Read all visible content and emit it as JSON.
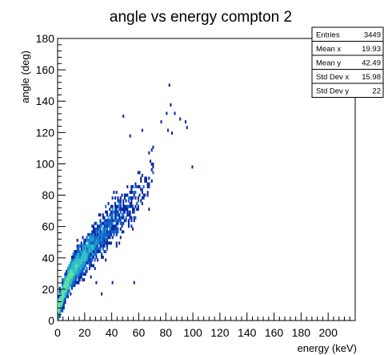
{
  "chart_data": {
    "type": "heatmap",
    "title": "angle vs energy compton 2",
    "xlabel": "energy (keV)",
    "ylabel": "angle (deg)",
    "xlim": [
      0,
      220
    ],
    "ylim": [
      0,
      180
    ],
    "x_ticks": [
      0,
      20,
      40,
      60,
      80,
      100,
      120,
      140,
      160,
      180,
      200
    ],
    "y_ticks": [
      0,
      20,
      40,
      60,
      80,
      100,
      120,
      140,
      160,
      180
    ],
    "grid": false,
    "stats_box": {
      "placement": "top-right",
      "rows": [
        {
          "label": "Entries",
          "value": "3449"
        },
        {
          "label": "Mean x",
          "value": "19.93"
        },
        {
          "label": "Mean y",
          "value": "42.49"
        },
        {
          "label": "Std Dev x",
          "value": "15.98"
        },
        {
          "label": "Std Dev y",
          "value": "22"
        }
      ]
    },
    "density_model": {
      "entries": 3449,
      "relation_y_vs_x": [
        [
          0,
          6
        ],
        [
          5,
          20
        ],
        [
          10,
          30
        ],
        [
          20,
          42
        ],
        [
          40,
          62
        ],
        [
          60,
          80
        ],
        [
          70,
          92
        ],
        [
          80,
          102
        ]
      ],
      "colors": [
        "#0b2aa3",
        "#1560c8",
        "#1c98d0",
        "#33c2c4",
        "#5fe0a0"
      ],
      "outliers": [
        [
          82,
          150
        ],
        [
          83,
          137
        ],
        [
          80,
          132
        ],
        [
          86,
          133
        ],
        [
          90,
          129
        ],
        [
          76,
          127
        ],
        [
          81,
          122
        ],
        [
          95,
          123
        ],
        [
          94,
          126
        ],
        [
          84,
          120
        ],
        [
          99,
          98
        ],
        [
          48,
          131
        ],
        [
          62,
          121
        ],
        [
          53,
          117
        ],
        [
          40,
          25
        ],
        [
          56,
          25
        ],
        [
          28,
          24
        ],
        [
          24,
          27
        ],
        [
          32,
          17
        ]
      ]
    }
  }
}
